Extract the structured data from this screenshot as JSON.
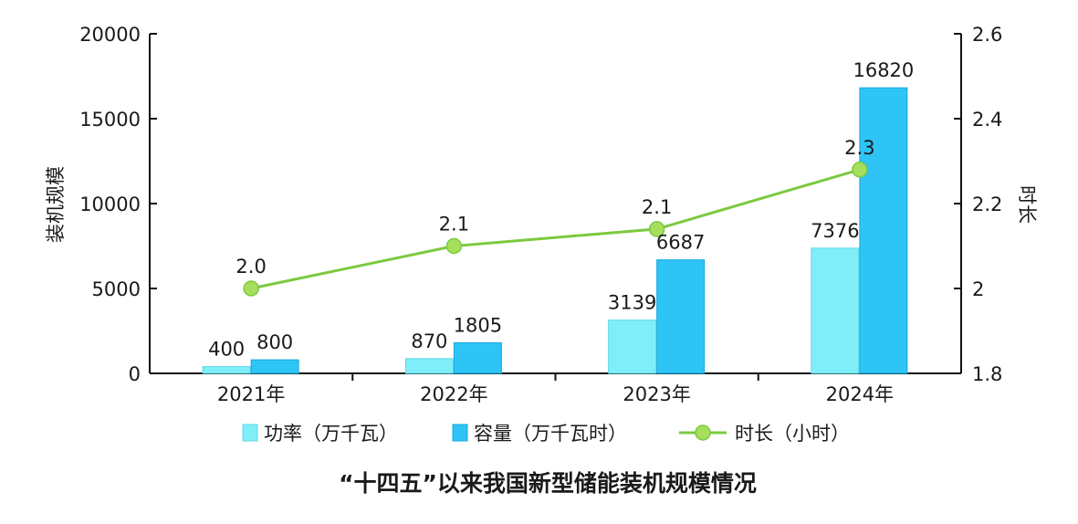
{
  "chart_data": {
    "type": "bar+line",
    "title": "“十四五”以来我国新型储能装机规模情况",
    "categories": [
      "2021年",
      "2022年",
      "2023年",
      "2024年"
    ],
    "y_left": {
      "label": "装机规模",
      "range": [
        0,
        20000
      ],
      "ticks": [
        "0",
        "5000",
        "10000",
        "15000",
        "20000"
      ]
    },
    "y_right": {
      "label": "时长",
      "range": [
        1.8,
        2.6
      ],
      "ticks": [
        "1.8",
        "2",
        "2.2",
        "2.4",
        "2.6"
      ]
    },
    "grid": false,
    "legend_position": "bottom",
    "series": [
      {
        "name": "功率（万千瓦）",
        "type": "bar",
        "axis": "left",
        "color": "#80eef8",
        "values": [
          400,
          870,
          3139,
          7376
        ],
        "labels": [
          "400",
          "870",
          "3139",
          "7376"
        ]
      },
      {
        "name": "容量（万千瓦时）",
        "type": "bar",
        "axis": "left",
        "color": "#2ec4f6",
        "values": [
          800,
          1805,
          6687,
          16820
        ],
        "labels": [
          "800",
          "1805",
          "6687",
          "16820"
        ]
      },
      {
        "name": "时长（小时）",
        "type": "line",
        "axis": "right",
        "color": "#7cc940",
        "marker_color": "#a6df5c",
        "values": [
          2.0,
          2.1,
          2.14,
          2.28
        ],
        "labels": [
          "2.0",
          "2.1",
          "2.1",
          "2.3"
        ]
      }
    ]
  }
}
